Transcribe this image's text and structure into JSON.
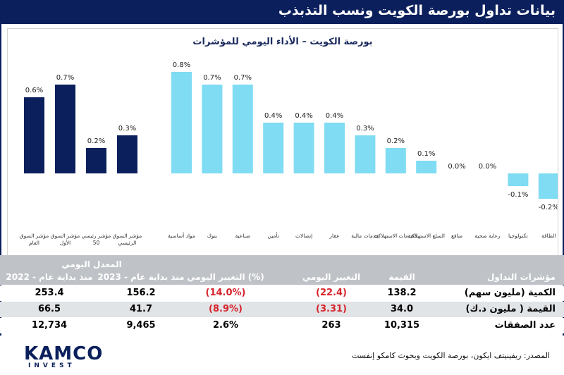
{
  "header": {
    "title": "بيانات تداول بورصة الكويت ونسب التذبذب"
  },
  "chart_data": {
    "type": "bar",
    "title": "بورصة الكويت – الأداء اليومي للمؤشرات",
    "ylim": [
      -0.3,
      0.9
    ],
    "groups": [
      {
        "name": "main-indices",
        "color": "#0b1f5c",
        "categories": [
          "مؤشر السوق العام",
          "مؤشر السوق الأول",
          "مؤشر رئيسي 50",
          "مؤشر السوق الرئيسي"
        ],
        "values": [
          0.6,
          0.7,
          0.2,
          0.3
        ],
        "labels": [
          "0.6%",
          "0.7%",
          "0.2%",
          "0.3%"
        ]
      },
      {
        "name": "sectors",
        "color": "#7fdcf3",
        "categories": [
          "مواد أساسية",
          "بنوك",
          "صناعية",
          "تأمين",
          "إتصالات",
          "عقار",
          "خدمات مالية",
          "الخدمات الاستهلاكية",
          "السلع الاستهلاكية",
          "منافع",
          "رعاية صحية",
          "تكنولوجيا",
          "الطاقة"
        ],
        "values": [
          0.8,
          0.7,
          0.7,
          0.4,
          0.4,
          0.4,
          0.3,
          0.2,
          0.1,
          0.0,
          0.0,
          -0.1,
          -0.2
        ],
        "labels": [
          "0.8%",
          "0.7%",
          "0.7%",
          "0.4%",
          "0.4%",
          "0.4%",
          "0.3%",
          "0.2%",
          "0.1%",
          "0.0%",
          "0.0%",
          "-0.1%",
          "-0.2%"
        ]
      }
    ]
  },
  "table": {
    "daily_avg_label": "المعدل اليومي",
    "headers": {
      "indicators": "مؤشرات التداول",
      "value": "القيمة",
      "daily_change": "التغيير اليومي",
      "daily_change_pct": "التغيير اليومي (%)",
      "ytd_2023": "منذ بداية عام - 2023",
      "ytd_2022": "منذ بداية عام - 2022"
    },
    "rows": [
      {
        "label": "الكمية (مليون سهم)",
        "value": "138.2",
        "daily_change": "(22.4)",
        "daily_change_pct": "(14.0%)",
        "ytd_2023": "156.2",
        "ytd_2022": "253.4",
        "negative": true
      },
      {
        "label": "القيمة ( مليون د.ك)",
        "value": "34.0",
        "daily_change": "(3.31)",
        "daily_change_pct": "(8.9%)",
        "ytd_2023": "41.7",
        "ytd_2022": "66.5",
        "negative": true
      },
      {
        "label": "عدد الصفقات",
        "value": "10,315",
        "daily_change": "263",
        "daily_change_pct": "2.6%",
        "ytd_2023": "9,465",
        "ytd_2022": "12,734",
        "negative": false
      }
    ]
  },
  "footer": {
    "logo_main": "KAMCO",
    "logo_sub": "INVEST",
    "source": "المصدر: ريفينيتف ايكون، بورصة الكويت وبحوث كامكو إنفست"
  }
}
